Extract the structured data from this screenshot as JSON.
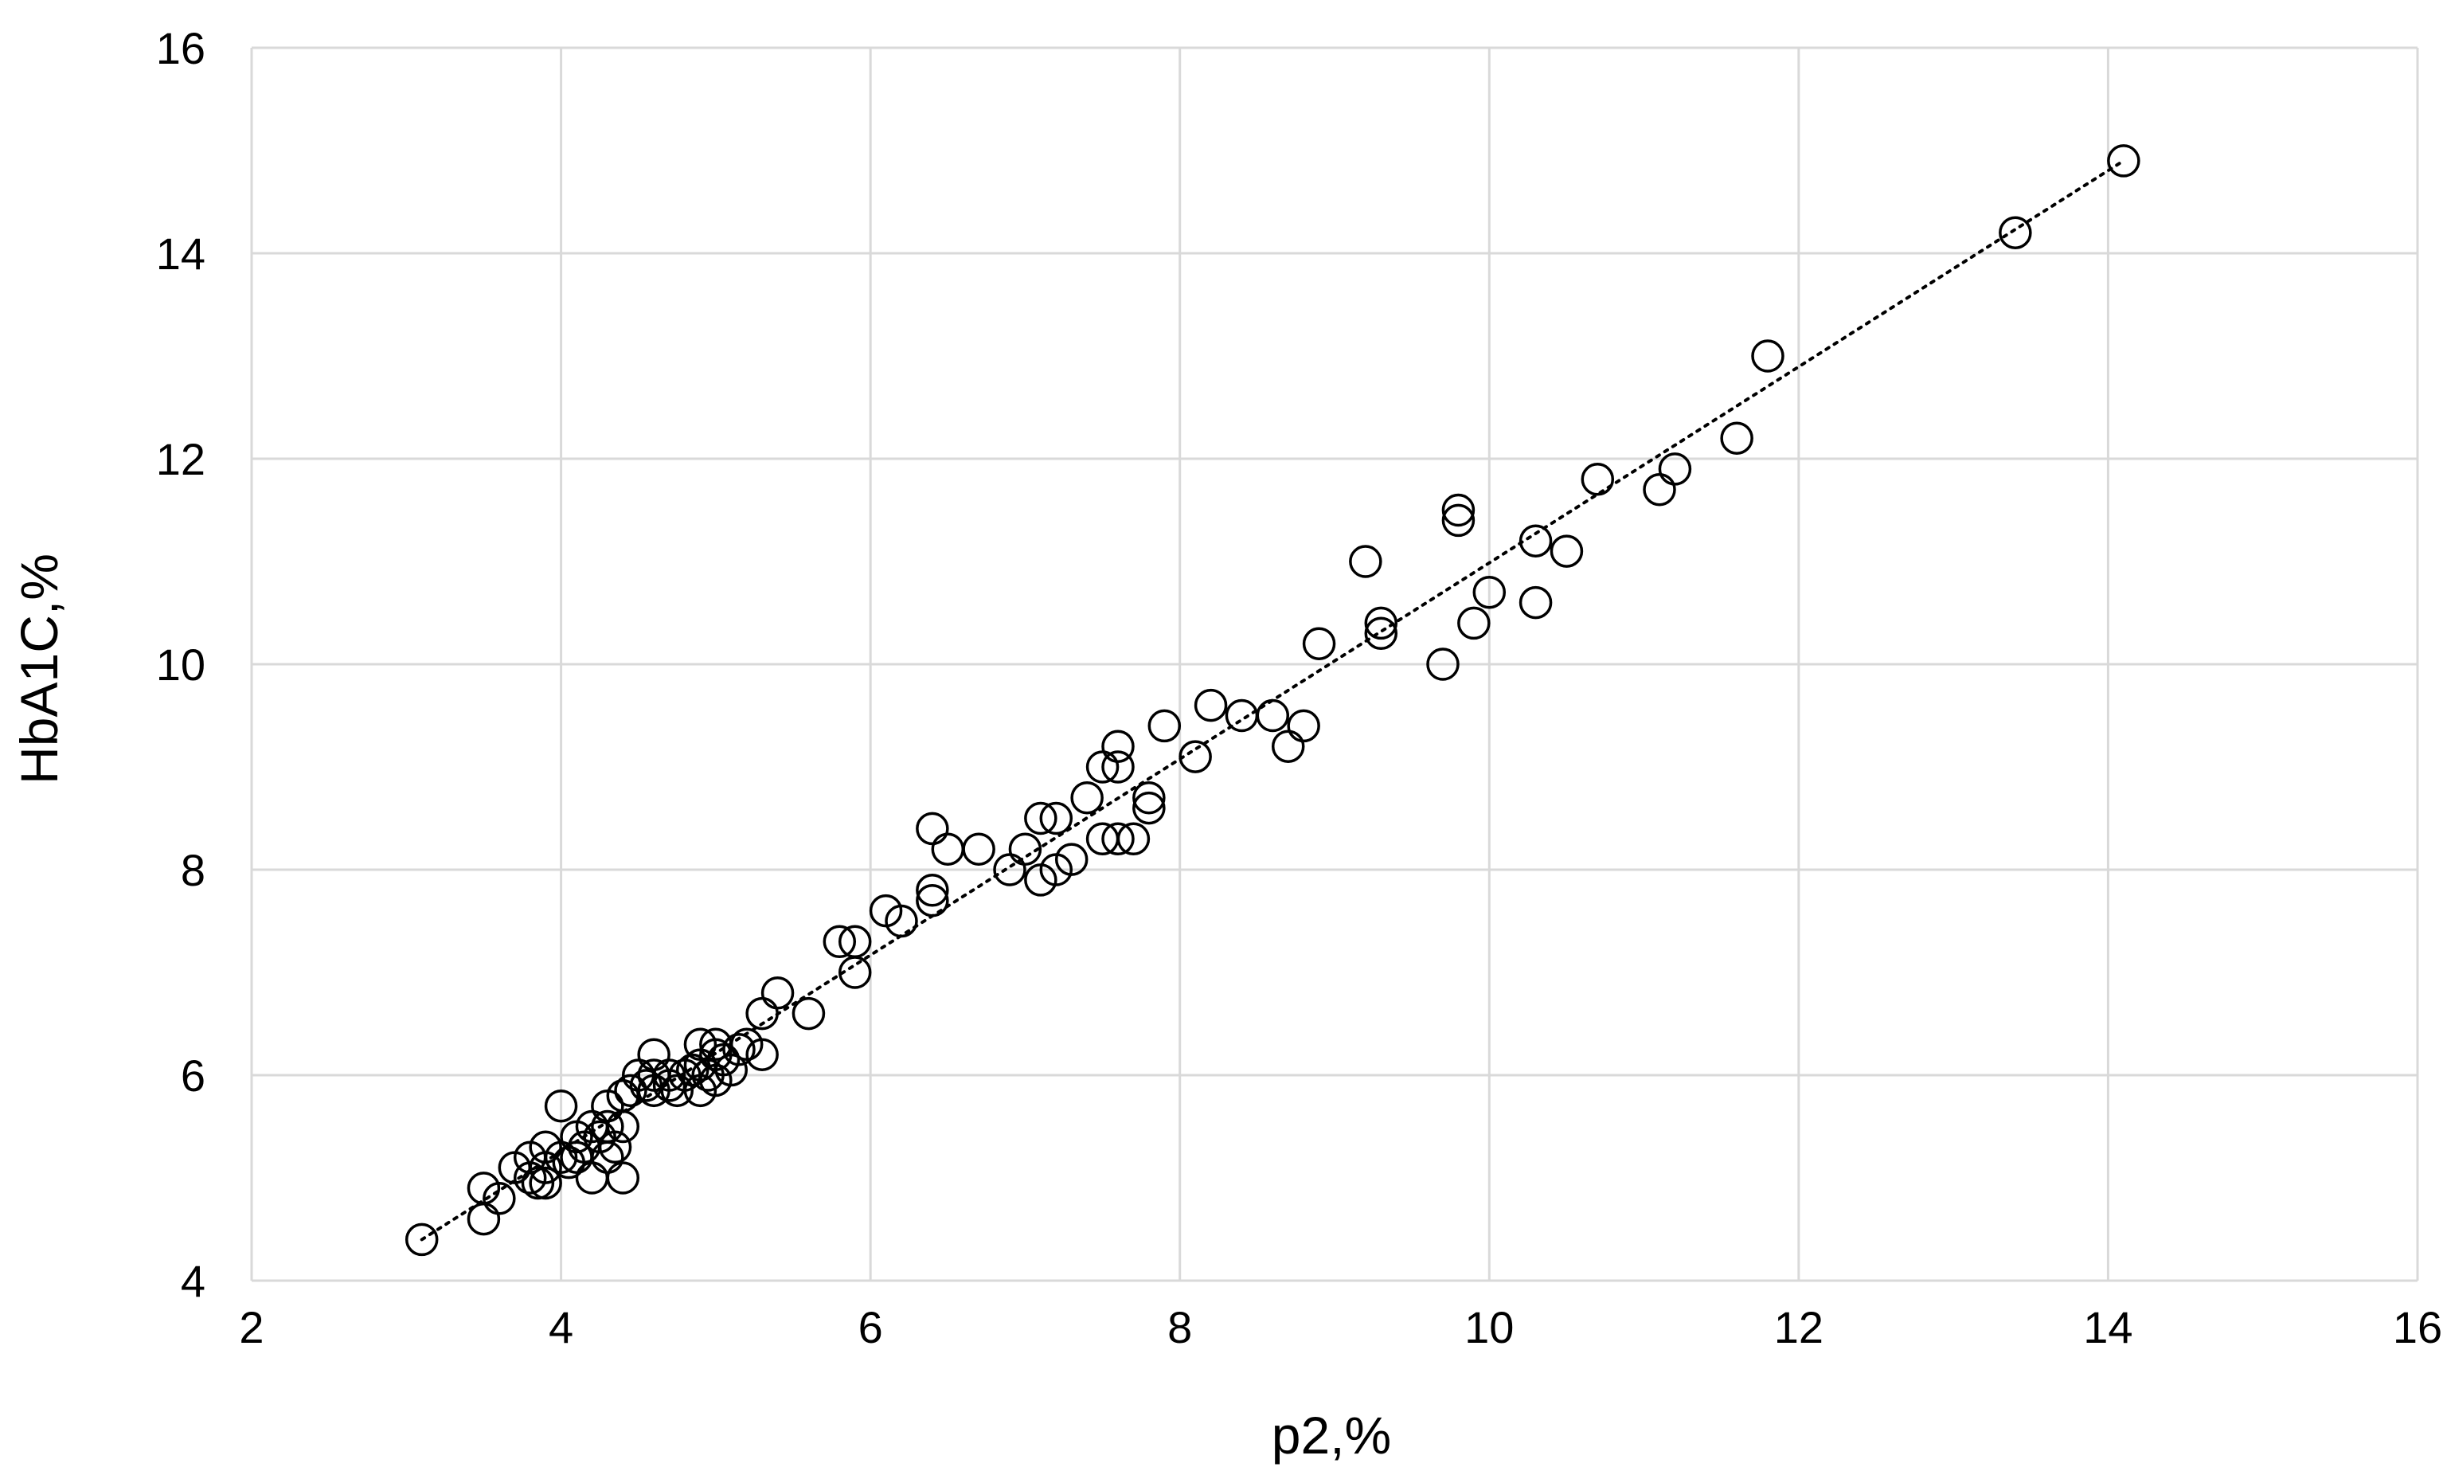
{
  "chart_data": {
    "type": "scatter",
    "title": "",
    "xlabel": "p2,%",
    "ylabel": "HbA1C,%",
    "xlim": [
      2,
      16
    ],
    "ylim": [
      4,
      16
    ],
    "xticks": [
      2,
      4,
      6,
      8,
      10,
      12,
      14,
      16
    ],
    "yticks": [
      4,
      6,
      8,
      10,
      12,
      14,
      16
    ],
    "grid": true,
    "legend": "none",
    "marker": "open-circle",
    "colors": {
      "marker_stroke": "#000000",
      "grid": "#d9d9d9",
      "trendline": "#000000"
    },
    "trendline": {
      "type": "linear",
      "style": "dotted",
      "points": [
        [
          3.1,
          4.4
        ],
        [
          14.1,
          14.9
        ]
      ]
    },
    "series": [
      {
        "points": [
          [
            3.1,
            4.4
          ],
          [
            3.5,
            4.9
          ],
          [
            3.5,
            4.6
          ],
          [
            3.6,
            4.8
          ],
          [
            3.7,
            5.1
          ],
          [
            3.8,
            5.0
          ],
          [
            3.8,
            5.2
          ],
          [
            3.85,
            4.95
          ],
          [
            3.9,
            5.1
          ],
          [
            3.9,
            5.3
          ],
          [
            3.9,
            4.95
          ],
          [
            4.0,
            5.2
          ],
          [
            4.0,
            5.7
          ],
          [
            4.05,
            5.15
          ],
          [
            4.1,
            5.2
          ],
          [
            4.1,
            5.4
          ],
          [
            4.15,
            5.3
          ],
          [
            4.2,
            5.5
          ],
          [
            4.2,
            5.0
          ],
          [
            4.25,
            5.4
          ],
          [
            4.3,
            5.7
          ],
          [
            4.3,
            5.5
          ],
          [
            4.3,
            5.2
          ],
          [
            4.35,
            5.3
          ],
          [
            4.4,
            5.0
          ],
          [
            4.4,
            5.5
          ],
          [
            4.4,
            5.8
          ],
          [
            4.45,
            5.85
          ],
          [
            4.5,
            6.0
          ],
          [
            4.55,
            5.9
          ],
          [
            4.6,
            6.2
          ],
          [
            4.6,
            6.0
          ],
          [
            4.6,
            5.85
          ],
          [
            4.7,
            5.9
          ],
          [
            4.7,
            6.0
          ],
          [
            4.75,
            5.85
          ],
          [
            4.8,
            6.0
          ],
          [
            4.85,
            6.05
          ],
          [
            4.9,
            6.3
          ],
          [
            4.9,
            6.1
          ],
          [
            4.9,
            5.85
          ],
          [
            4.95,
            6.0
          ],
          [
            5.0,
            6.3
          ],
          [
            5.0,
            6.2
          ],
          [
            5.0,
            5.95
          ],
          [
            5.05,
            6.15
          ],
          [
            5.1,
            6.05
          ],
          [
            5.15,
            6.25
          ],
          [
            5.2,
            6.3
          ],
          [
            5.3,
            6.2
          ],
          [
            5.3,
            6.6
          ],
          [
            5.4,
            6.8
          ],
          [
            5.6,
            6.6
          ],
          [
            5.8,
            7.3
          ],
          [
            5.9,
            7.3
          ],
          [
            5.9,
            7.0
          ],
          [
            6.1,
            7.6
          ],
          [
            6.2,
            7.5
          ],
          [
            6.4,
            7.7
          ],
          [
            6.4,
            7.8
          ],
          [
            6.4,
            8.4
          ],
          [
            6.5,
            8.2
          ],
          [
            6.7,
            8.2
          ],
          [
            6.9,
            8.0
          ],
          [
            7.0,
            8.2
          ],
          [
            7.1,
            7.9
          ],
          [
            7.1,
            8.5
          ],
          [
            7.2,
            8.0
          ],
          [
            7.2,
            8.5
          ],
          [
            7.3,
            8.1
          ],
          [
            7.4,
            8.7
          ],
          [
            7.5,
            8.3
          ],
          [
            7.5,
            9.0
          ],
          [
            7.6,
            9.2
          ],
          [
            7.6,
            9.0
          ],
          [
            7.6,
            8.3
          ],
          [
            7.7,
            8.3
          ],
          [
            7.8,
            8.6
          ],
          [
            7.8,
            8.7
          ],
          [
            7.9,
            9.4
          ],
          [
            8.1,
            9.1
          ],
          [
            8.2,
            9.6
          ],
          [
            8.4,
            9.5
          ],
          [
            8.6,
            9.5
          ],
          [
            8.7,
            9.2
          ],
          [
            8.8,
            9.4
          ],
          [
            8.9,
            10.2
          ],
          [
            9.2,
            11.0
          ],
          [
            9.3,
            10.3
          ],
          [
            9.3,
            10.4
          ],
          [
            9.7,
            10.0
          ],
          [
            9.8,
            11.5
          ],
          [
            9.8,
            11.4
          ],
          [
            9.9,
            10.4
          ],
          [
            10.0,
            10.7
          ],
          [
            10.3,
            11.2
          ],
          [
            10.3,
            10.6
          ],
          [
            10.5,
            11.1
          ],
          [
            10.7,
            11.8
          ],
          [
            11.1,
            11.7
          ],
          [
            11.2,
            11.9
          ],
          [
            11.6,
            12.2
          ],
          [
            11.8,
            13.0
          ],
          [
            13.4,
            14.2
          ],
          [
            14.1,
            14.9
          ]
        ]
      }
    ]
  }
}
